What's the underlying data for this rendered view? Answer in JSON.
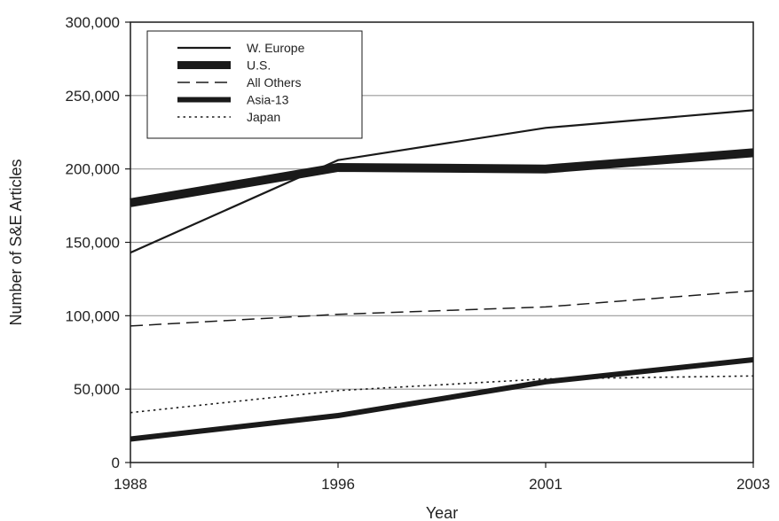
{
  "chart_data": {
    "type": "line",
    "title": "",
    "xlabel": "Year",
    "ylabel": "Number of S&E Articles",
    "categories": [
      "1988",
      "1996",
      "2001",
      "2003"
    ],
    "ylim": [
      0,
      300000
    ],
    "yticks": [
      0,
      50000,
      100000,
      150000,
      200000,
      250000,
      300000
    ],
    "ytick_labels": [
      "0",
      "50,000",
      "100,000",
      "150,000",
      "200,000",
      "250,000",
      "300,000"
    ],
    "grid": "horizontal",
    "legend": "top-left",
    "series": [
      {
        "name": "W. Europe",
        "values": [
          143000,
          206000,
          228000,
          240000
        ],
        "style": "thin-solid",
        "color": "#1a1a1a"
      },
      {
        "name": "U.S.",
        "values": [
          177000,
          201000,
          200000,
          211000
        ],
        "style": "thick-solid",
        "color": "#1a1a1a"
      },
      {
        "name": "All Others",
        "values": [
          93000,
          101000,
          106000,
          117000
        ],
        "style": "dashed",
        "color": "#1a1a1a"
      },
      {
        "name": "Asia-13",
        "values": [
          16000,
          32000,
          55000,
          70000
        ],
        "style": "medium-solid",
        "color": "#1a1a1a"
      },
      {
        "name": "Japan",
        "values": [
          34000,
          49000,
          57000,
          59000
        ],
        "style": "dotted",
        "color": "#1a1a1a"
      }
    ]
  }
}
